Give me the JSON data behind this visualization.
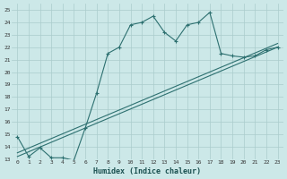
{
  "xlabel": "Humidex (Indice chaleur)",
  "background_color": "#cce8e8",
  "grid_color": "#aacccc",
  "line_color": "#2d7070",
  "xlim": [
    -0.5,
    23.5
  ],
  "ylim": [
    13,
    25.5
  ],
  "xticks": [
    0,
    1,
    2,
    3,
    4,
    5,
    6,
    7,
    8,
    9,
    10,
    11,
    12,
    13,
    14,
    15,
    16,
    17,
    18,
    19,
    20,
    21,
    22,
    23
  ],
  "yticks": [
    13,
    14,
    15,
    16,
    17,
    18,
    19,
    20,
    21,
    22,
    23,
    24,
    25
  ],
  "line1_x": [
    0,
    1,
    2,
    3,
    4,
    5,
    6,
    7,
    8,
    9,
    10,
    11,
    12,
    13,
    14,
    15,
    16,
    17,
    18,
    19,
    20,
    21,
    22,
    23
  ],
  "line1_y": [
    14.8,
    13.2,
    13.9,
    13.1,
    13.1,
    12.9,
    15.5,
    18.3,
    21.5,
    22.0,
    23.8,
    24.0,
    24.5,
    23.2,
    22.5,
    23.8,
    24.0,
    24.8,
    21.5,
    21.3,
    21.2,
    21.3,
    21.8,
    22.0
  ],
  "line2_x": [
    0,
    23
  ],
  "line2_y": [
    13.2,
    22.0
  ],
  "line3_x": [
    0,
    23
  ],
  "line3_y": [
    13.5,
    22.3
  ]
}
